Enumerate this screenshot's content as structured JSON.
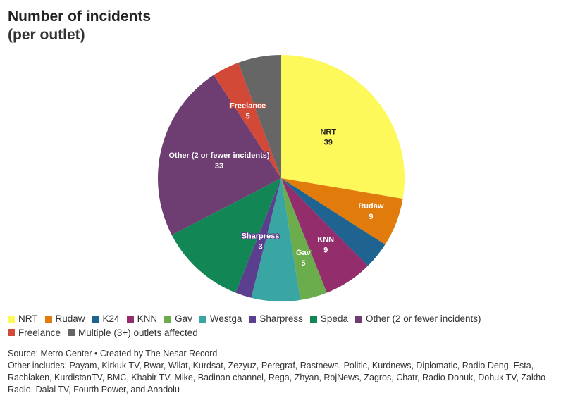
{
  "chart_data": {
    "type": "pie",
    "title": "Number of incidents",
    "subtitle": "(per outlet)",
    "slices": [
      {
        "name": "NRT",
        "value": 39,
        "color": "#fef95a",
        "label_value": "39",
        "label_color": "#222222"
      },
      {
        "name": "Rudaw",
        "value": 9,
        "color": "#e07b0c",
        "label_value": "9",
        "label_color": "#ffffff"
      },
      {
        "name": "K24",
        "value": 5,
        "color": "#1f6391",
        "label_value": "",
        "label_color": "#ffffff"
      },
      {
        "name": "KNN",
        "value": 9,
        "color": "#942d6c",
        "label_value": "9",
        "label_color": "#ffffff"
      },
      {
        "name": "Gav",
        "value": 5,
        "color": "#6bac4c",
        "label_value": "5",
        "label_color": "#ffffff"
      },
      {
        "name": "Westga",
        "value": 9,
        "color": "#39a6a4",
        "label_value": "",
        "label_color": "#ffffff"
      },
      {
        "name": "Sharpress",
        "value": 3,
        "color": "#5b3f8e",
        "label_value": "3",
        "label_color": "#ffffff"
      },
      {
        "name": "Speda",
        "value": 16,
        "color": "#128755",
        "label_value": "",
        "label_color": "#ffffff"
      },
      {
        "name": "Other (2 or fewer incidents)",
        "value": 33,
        "color": "#6e3e72",
        "label_value": "33",
        "label_color": "#ffffff"
      },
      {
        "name": "Freelance",
        "value": 5,
        "color": "#d24a37",
        "label_value": "5",
        "label_color": "#ffffff"
      },
      {
        "name": "Multiple (3+) outlets affected",
        "value": 8,
        "color": "#666666",
        "label_value": "",
        "label_color": "#ffffff"
      }
    ],
    "legend_position": "bottom-left"
  },
  "footer": {
    "source": "Source: Metro Center • Created by The Nesar Record",
    "other_includes": "Other includes: Payam, Kirkuk TV, Bwar, Wilat, Kurdsat, Zezyuz, Peregraf, Rastnews, Politic, Kurdnews, Diplomatic, Radio Deng, Esta, Rachlaken, KurdistanTV, BMC, Khabir TV, Mike, Badinan channel, Rega, Zhyan, RojNews, Zagros, Chatr, Radio Dohuk, Dohuk TV, Zakho Radio, Dalal TV, Fourth Power, and Anadolu"
  }
}
